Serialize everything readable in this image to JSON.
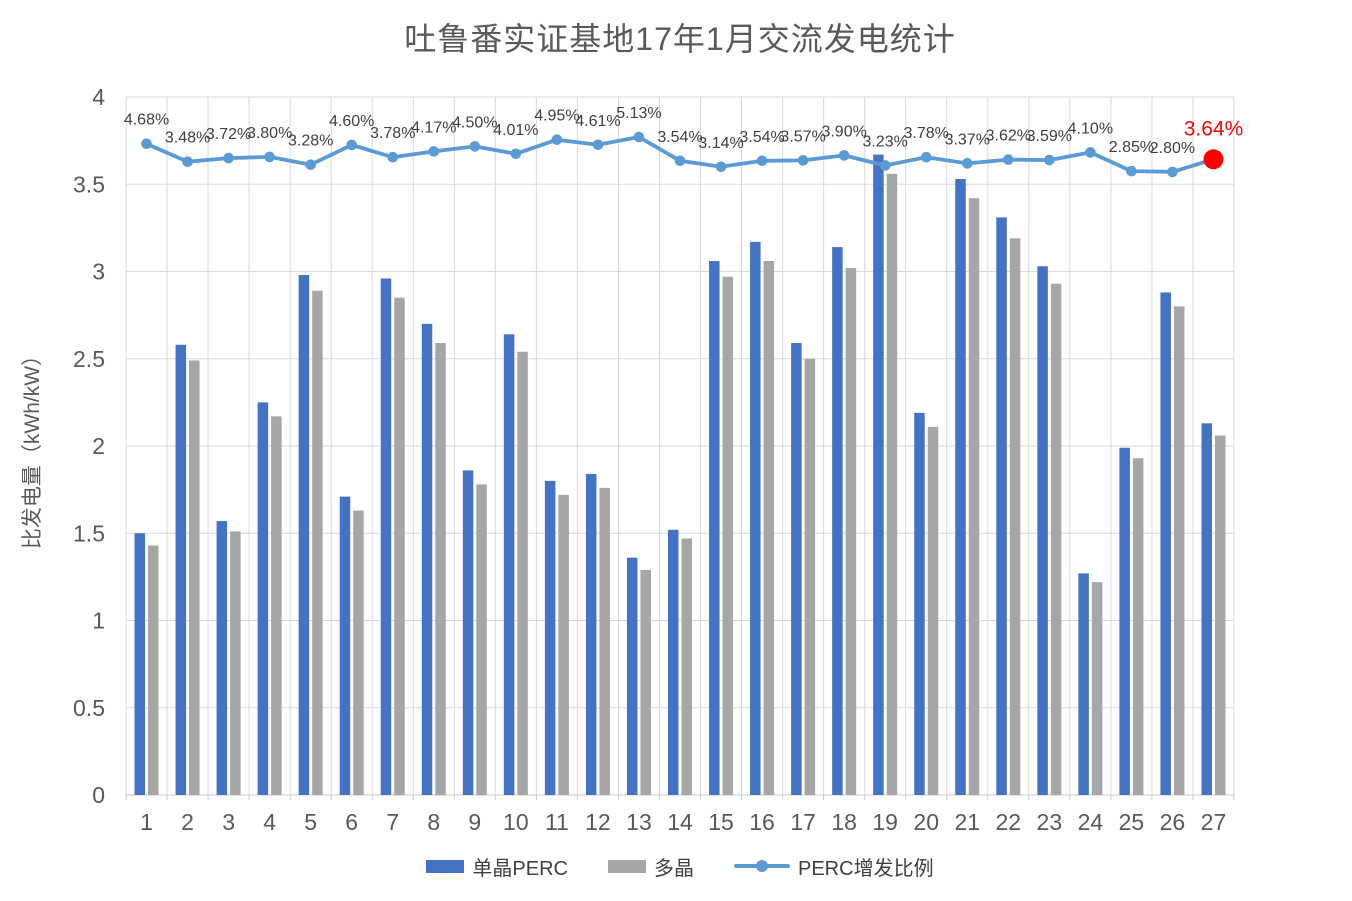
{
  "colors": {
    "background": "#FFFFFF",
    "title_text": "#595959",
    "axis_text": "#595959",
    "data_label_text": "#404040",
    "gridline": "#D9D9D9",
    "axis_line": "#C9C9C9",
    "bar_mono_perc": "#4472C4",
    "bar_poly": "#A6A6A6",
    "line_perc_ratio": "#5B9BD5",
    "highlight_red": "#FF0000"
  },
  "chart_data": {
    "type": "bar+line combo",
    "title": "吐鲁番实证基地17年1月交流发电统计",
    "ylabel": "比发电量（kWh/kW）",
    "xlabel": "",
    "categories": [
      "1",
      "2",
      "3",
      "4",
      "5",
      "6",
      "7",
      "8",
      "9",
      "10",
      "11",
      "12",
      "13",
      "14",
      "15",
      "16",
      "17",
      "18",
      "19",
      "20",
      "21",
      "22",
      "23",
      "24",
      "25",
      "26",
      "27"
    ],
    "ylim": [
      0,
      4
    ],
    "y_ticks": [
      "0",
      "0.5",
      "1",
      "1.5",
      "2",
      "2.5",
      "3",
      "3.5",
      "4"
    ],
    "grid": true,
    "legend_position": "bottom",
    "series": [
      {
        "name": "单晶PERC",
        "type": "bar",
        "color": "#4472C4",
        "values": [
          1.5,
          2.58,
          1.57,
          2.25,
          2.98,
          1.71,
          2.96,
          2.7,
          1.86,
          2.64,
          1.8,
          1.84,
          1.36,
          1.52,
          3.06,
          3.17,
          2.59,
          3.14,
          3.67,
          2.19,
          3.53,
          3.31,
          3.03,
          1.27,
          1.99,
          2.88,
          2.13
        ]
      },
      {
        "name": "多晶",
        "type": "bar",
        "color": "#A6A6A6",
        "values": [
          1.43,
          2.49,
          1.51,
          2.17,
          2.89,
          1.63,
          2.85,
          2.59,
          1.78,
          2.54,
          1.72,
          1.76,
          1.29,
          1.47,
          2.97,
          3.06,
          2.5,
          3.02,
          3.56,
          2.11,
          3.42,
          3.19,
          2.93,
          1.22,
          1.93,
          2.8,
          2.06
        ]
      },
      {
        "name": "PERC增发比例",
        "type": "line",
        "color": "#5B9BD5",
        "unit": "%",
        "values": [
          4.68,
          3.48,
          3.72,
          3.8,
          3.28,
          4.6,
          3.78,
          4.17,
          4.5,
          4.01,
          4.95,
          4.61,
          5.13,
          3.54,
          3.14,
          3.54,
          3.57,
          3.9,
          3.23,
          3.78,
          3.37,
          3.62,
          3.59,
          4.1,
          2.85,
          2.8,
          3.64
        ],
        "labels": [
          "4.68%",
          "3.48%",
          "3.72%",
          "3.80%",
          "3.28%",
          "4.60%",
          "3.78%",
          "4.17%",
          "4.50%",
          "4.01%",
          "4.95%",
          "4.61%",
          "5.13%",
          "3.54%",
          "3.14%",
          "3.54%",
          "3.57%",
          "3.90%",
          "3.23%",
          "3.78%",
          "3.37%",
          "3.62%",
          "3.59%",
          "4.10%",
          "2.85%",
          "2.80%",
          "3.64%"
        ],
        "label_color": "#404040",
        "secondary_axis_range": [
          -38.8,
          7.8
        ],
        "highlight_last_point": {
          "label": "3.64%",
          "label_color": "#FF0000",
          "marker_color": "#FF0000"
        }
      }
    ]
  }
}
